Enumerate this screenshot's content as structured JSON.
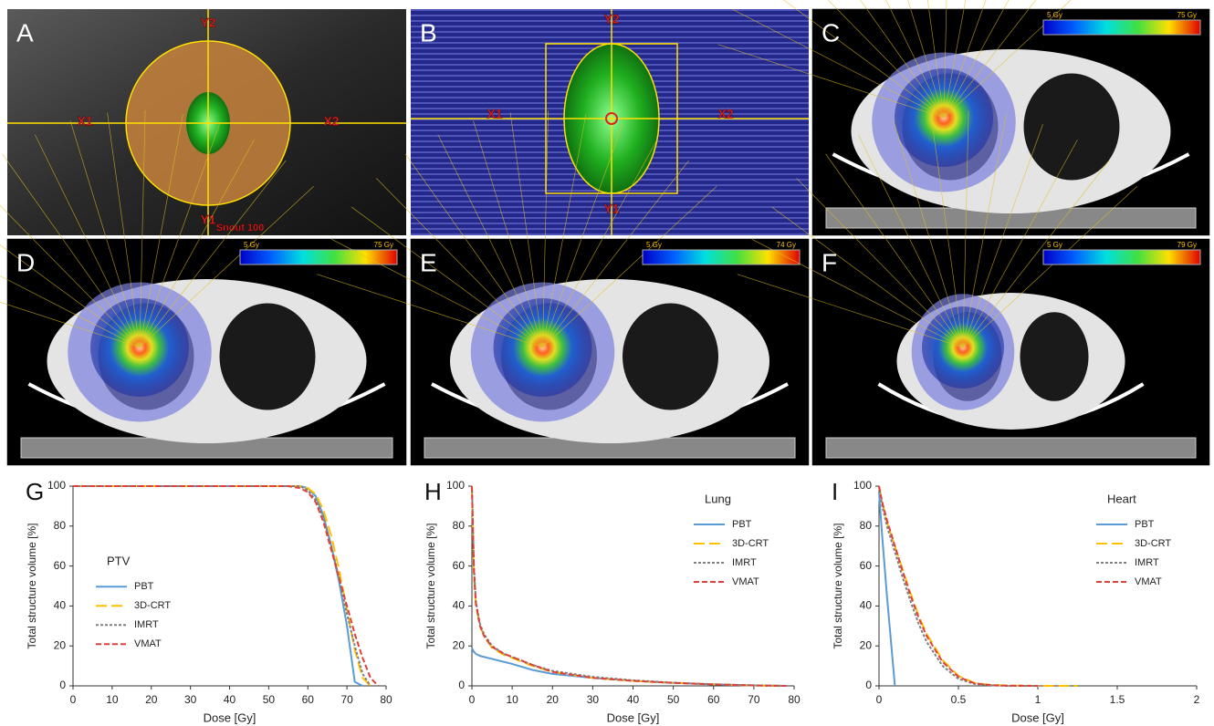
{
  "panels": [
    {
      "label": "A",
      "annotations": [
        "Y2",
        "X1",
        "X2",
        "Y1",
        "Snout 100"
      ]
    },
    {
      "label": "B",
      "annotations": [
        "Y2",
        "X1",
        "X2",
        "Y1"
      ]
    },
    {
      "label": "C",
      "colorbar": [
        "5 Gy",
        "75 Gy"
      ]
    },
    {
      "label": "D",
      "colorbar": [
        "5 Gy",
        "75 Gy"
      ]
    },
    {
      "label": "E",
      "colorbar": [
        "5 Gy",
        "74 Gy"
      ]
    },
    {
      "label": "F",
      "colorbar": [
        "5 Gy",
        "79 Gy"
      ]
    }
  ],
  "chart_data": [
    {
      "type": "line",
      "panel": "G",
      "legend_title": "PTV",
      "legend": "center-left",
      "x_label": "Dose [Gy]",
      "y_label": "Total structure volume [%]",
      "xlim": [
        0,
        80
      ],
      "xticks": [
        0,
        10,
        20,
        30,
        40,
        50,
        60,
        70,
        80
      ],
      "ylim": [
        0,
        100
      ],
      "yticks": [
        0,
        20,
        40,
        60,
        80,
        100
      ],
      "x": [
        0,
        10,
        20,
        30,
        40,
        50,
        55,
        58,
        60,
        62,
        64,
        66,
        68,
        70,
        72,
        74,
        76,
        78
      ],
      "series": [
        {
          "name": "PBT",
          "color": "#5b9bd5",
          "style": "solid",
          "values": [
            100,
            100,
            100,
            100,
            100,
            100,
            100,
            100,
            99,
            95,
            85,
            70,
            52,
            30,
            2,
            0,
            null,
            null
          ]
        },
        {
          "name": "3D-CRT",
          "color": "#ffc000",
          "style": "long-dash",
          "values": [
            100,
            100,
            100,
            100,
            100,
            100,
            100,
            100,
            99,
            96,
            88,
            75,
            58,
            38,
            18,
            4,
            0,
            null
          ]
        },
        {
          "name": "IMRT",
          "color": "#7f7f7f",
          "style": "dot",
          "values": [
            100,
            100,
            100,
            100,
            100,
            100,
            100,
            100,
            98,
            93,
            84,
            70,
            54,
            36,
            20,
            6,
            0,
            null
          ]
        },
        {
          "name": "VMAT",
          "color": "#e0403c",
          "style": "dash",
          "values": [
            100,
            100,
            100,
            100,
            100,
            100,
            100,
            99,
            97,
            92,
            82,
            68,
            54,
            40,
            26,
            14,
            4,
            0
          ]
        }
      ]
    },
    {
      "type": "line",
      "panel": "H",
      "legend_title": "Lung",
      "legend": "upper-right",
      "x_label": "Dose [Gy]",
      "y_label": "Total structure volume [%]",
      "xlim": [
        0,
        80
      ],
      "xticks": [
        0,
        10,
        20,
        30,
        40,
        50,
        60,
        70,
        80
      ],
      "ylim": [
        0,
        100
      ],
      "yticks": [
        0,
        20,
        40,
        60,
        80,
        100
      ],
      "x": [
        0,
        0.5,
        1,
        2,
        3,
        5,
        8,
        10,
        15,
        20,
        30,
        40,
        50,
        60,
        70,
        78
      ],
      "series": [
        {
          "name": "PBT",
          "color": "#5b9bd5",
          "style": "solid",
          "values": [
            19,
            17,
            16,
            15,
            14.5,
            13.5,
            12,
            11,
            8,
            6,
            4,
            2.5,
            1.5,
            0.8,
            0.3,
            0
          ]
        },
        {
          "name": "3D-CRT",
          "color": "#ffc000",
          "style": "long-dash",
          "values": [
            100,
            55,
            40,
            30,
            25,
            19,
            15.5,
            14,
            10,
            7,
            4,
            2.5,
            1.5,
            0.8,
            0.2,
            0
          ]
        },
        {
          "name": "IMRT",
          "color": "#7f7f7f",
          "style": "dot",
          "values": [
            100,
            60,
            42,
            31,
            26,
            20,
            16,
            14.5,
            10.5,
            7.5,
            4.5,
            2.8,
            1.6,
            0.8,
            0.2,
            0
          ]
        },
        {
          "name": "VMAT",
          "color": "#e0403c",
          "style": "dash",
          "values": [
            100,
            58,
            41,
            30,
            25,
            19.5,
            16,
            14.5,
            10.5,
            7,
            4,
            2.5,
            1.5,
            0.7,
            0.2,
            0
          ]
        }
      ]
    },
    {
      "type": "line",
      "panel": "I",
      "legend_title": "Heart",
      "legend": "upper-right",
      "x_label": "Dose [Gy]",
      "y_label": "Total structure volume [%]",
      "xlim": [
        0,
        2
      ],
      "xticks": [
        0,
        0.5,
        1,
        1.5,
        2
      ],
      "ylim": [
        0,
        100
      ],
      "yticks": [
        0,
        20,
        40,
        60,
        80,
        100
      ],
      "x": [
        0,
        0.02,
        0.05,
        0.1,
        0.15,
        0.2,
        0.25,
        0.3,
        0.4,
        0.5,
        0.6,
        0.7,
        0.8,
        1,
        1.25
      ],
      "series": [
        {
          "name": "PBT",
          "color": "#5b9bd5",
          "style": "solid",
          "values": [
            97,
            75,
            45,
            0,
            null,
            null,
            null,
            null,
            null,
            null,
            null,
            null,
            null,
            null,
            null
          ]
        },
        {
          "name": "3D-CRT",
          "color": "#ffc000",
          "style": "long-dash",
          "values": [
            100,
            92,
            82,
            70,
            58,
            46,
            35,
            26,
            13,
            5,
            1.5,
            0.5,
            0.2,
            0,
            0
          ]
        },
        {
          "name": "IMRT",
          "color": "#7f7f7f",
          "style": "dot",
          "values": [
            100,
            90,
            80,
            67,
            54,
            42,
            31,
            22,
            10,
            3.5,
            1,
            0.3,
            0,
            0,
            null
          ]
        },
        {
          "name": "VMAT",
          "color": "#e0403c",
          "style": "dash",
          "values": [
            100,
            92,
            83,
            70,
            57,
            45,
            34,
            25,
            12,
            4.5,
            1.3,
            0.4,
            0.1,
            0,
            null
          ]
        }
      ]
    }
  ]
}
